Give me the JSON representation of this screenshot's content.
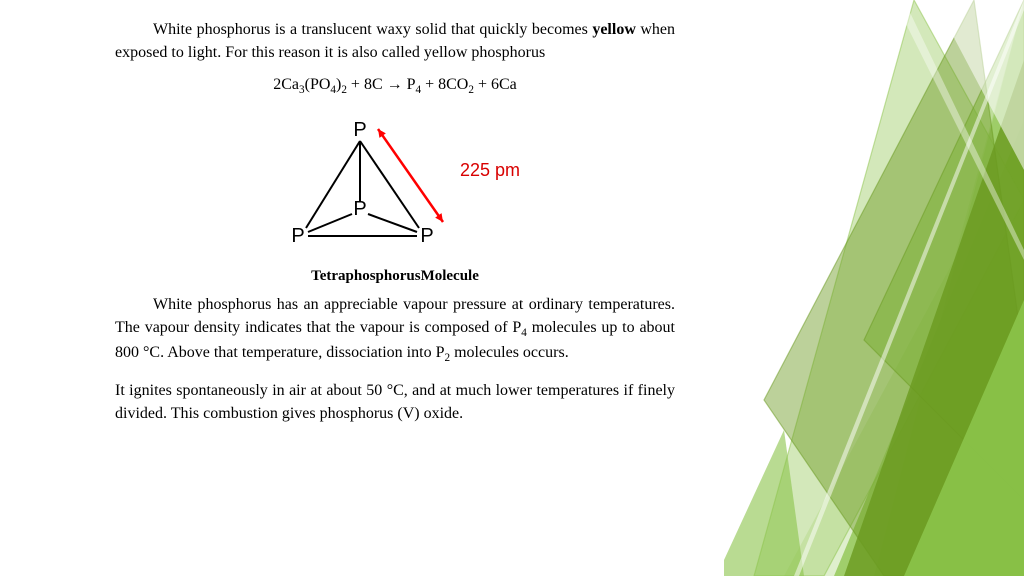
{
  "paragraphs": {
    "p1_a": "White phosphorus is a translucent waxy solid that quickly becomes ",
    "p1_bold": "yellow",
    "p1_b": " when exposed to light. For this reason it is also called yellow phosphorus",
    "p2": "White phosphorus has an appreciable vapour pressure at ordinary temperatures. The vapour density indicates that the vapour is composed of P",
    "p2_sub1": "4",
    "p2_b": " molecules up to about 800 °C. Above that temperature, dissociation into P",
    "p2_sub2": "2",
    "p2_c": " molecules occurs.",
    "p3": "It ignites spontaneously in air at about 50 °C, and at much lower temperatures if finely divided. This combustion gives phosphorus (V) oxide."
  },
  "equation": {
    "t1": "2Ca",
    "s1": "3",
    "t2": "(PO",
    "s2": "4",
    "t3": ")",
    "s3": "2",
    "t4": " + 8C → P",
    "s4": "4",
    "t5": " + 8CO",
    "s5": "2",
    "t6": " + 6Ca"
  },
  "diagram": {
    "caption": "TetraphosphorusMolecule",
    "atom_label": "P",
    "bond_length": "225 pm",
    "colors": {
      "bond": "#000000",
      "atom_text": "#000000",
      "arrow": "#ff0000",
      "label": "#d80000"
    },
    "font_family": "Arial, sans-serif",
    "atom_fontsize": 20,
    "label_fontsize": 18
  },
  "decor_colors": {
    "dark": "#6a9a1f",
    "mid": "#8bc34a",
    "light": "#aed581",
    "pale": "#dcedc8",
    "white": "#ffffff"
  }
}
